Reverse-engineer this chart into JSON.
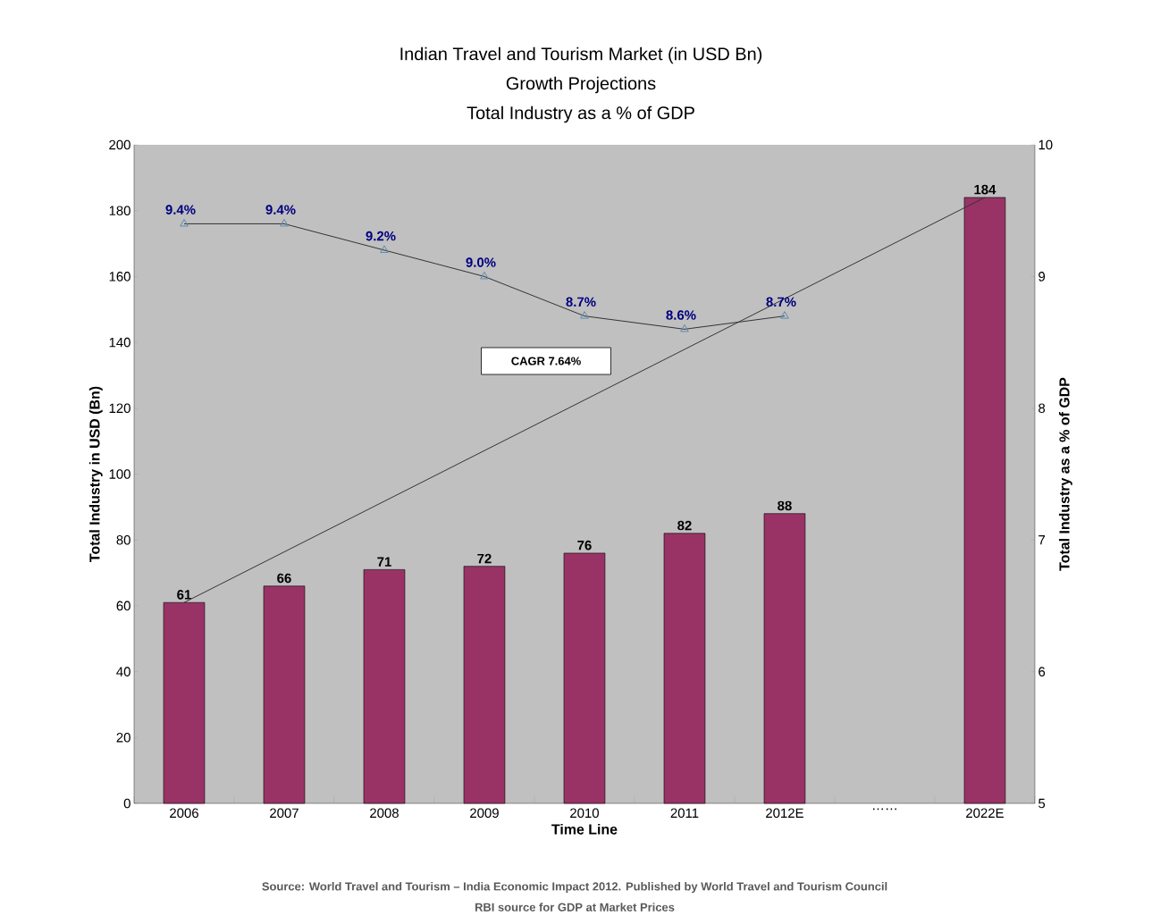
{
  "chart_data": {
    "type": "bar",
    "title": "Indian Travel and Tourism Market (in USD Bn)",
    "subtitle": "Growth Projections",
    "xlabel": "Time Line",
    "ylabel": "Total Industry in USD (Bn)",
    "y2label": "Total Industry as a % of GDP",
    "categories": [
      "2006",
      "2007",
      "2008",
      "2009",
      "2010",
      "2011",
      "2012E",
      "……",
      "2022E"
    ],
    "series": [
      {
        "color": "#993366",
        "values": [
          61,
          66,
          71,
          72,
          76,
          82,
          88,
          null,
          184
        ],
        "value_labels": [
          "61",
          "66",
          "71",
          "72",
          "76",
          "82",
          "88",
          null,
          "184"
        ]
      },
      {
        "type": "line",
        "color": "#333333",
        "marker": "none",
        "values": [
          61,
          null,
          null,
          null,
          null,
          null,
          null,
          null,
          184
        ]
      },
      {
        "type": "line",
        "axis": "y2",
        "color": "#333333",
        "marker": "triangle",
        "values": [
          9.4,
          9.4,
          9.2,
          9.0,
          8.7,
          8.6,
          8.7,
          null,
          null
        ],
        "value_labels": [
          "9.4%",
          "9.4%",
          "9.2%",
          "9.0%",
          "8.7%",
          "8.6%",
          "8.7%",
          null,
          null
        ]
      }
    ],
    "ylim": [
      0,
      200
    ],
    "yticks": [
      0,
      20,
      40,
      60,
      80,
      100,
      120,
      140,
      160,
      180,
      200
    ],
    "y2lim": [
      5,
      10
    ],
    "y2ticks": [
      5,
      6,
      7,
      8,
      9,
      10
    ],
    "annotations": [
      "Total Industry as a % of GDP",
      "CAGR  7.64%",
      "Source: World Travel and Tourism – India Economic Impact 2012. Published by World Travel and Tourism Council",
      "RBI source for GDP at Market Prices"
    ]
  }
}
